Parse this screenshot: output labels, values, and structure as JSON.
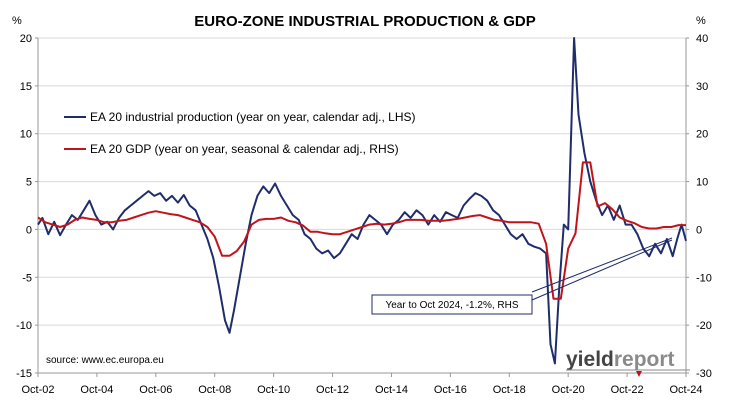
{
  "chart_data": {
    "type": "line",
    "title": "EURO-ZONE INDUSTRIAL PRODUCTION & GDP",
    "y_left_unit": "%",
    "y_right_unit": "%",
    "ylim_left": [
      -15,
      20
    ],
    "ylim_right": [
      -30,
      40
    ],
    "yticks_left": [
      "20",
      "15",
      "10",
      "5",
      "0",
      "-5",
      "-10",
      "-15"
    ],
    "yticks_right": [
      "40",
      "30",
      "20",
      "10",
      "0",
      "-10",
      "-20",
      "-30"
    ],
    "xlim": [
      2002.75,
      2024.75
    ],
    "xticks": [
      {
        "label": "Oct-02",
        "x": 2002.75
      },
      {
        "label": "Oct-04",
        "x": 2004.75
      },
      {
        "label": "Oct-06",
        "x": 2006.75
      },
      {
        "label": "Oct-08",
        "x": 2008.75
      },
      {
        "label": "Oct-10",
        "x": 2010.75
      },
      {
        "label": "Oct-12",
        "x": 2012.75
      },
      {
        "label": "Oct-14",
        "x": 2014.75
      },
      {
        "label": "Oct-16",
        "x": 2016.75
      },
      {
        "label": "Oct-18",
        "x": 2018.75
      },
      {
        "label": "Oct-20",
        "x": 2020.75
      },
      {
        "label": "Oct-22",
        "x": 2022.75
      },
      {
        "label": "Oct-24",
        "x": 2024.75
      }
    ],
    "grid": "horizontal",
    "legend_position": "top-left",
    "series": [
      {
        "name": "EA 20 industrial production (year on year, calendar adj., LHS)",
        "axis": "left",
        "color": "#1f2d6b",
        "points": [
          [
            2002.75,
            0.5
          ],
          [
            2002.9,
            1.2
          ],
          [
            2003.1,
            -0.5
          ],
          [
            2003.3,
            0.8
          ],
          [
            2003.5,
            -0.6
          ],
          [
            2003.7,
            0.5
          ],
          [
            2003.9,
            1.5
          ],
          [
            2004.1,
            1.0
          ],
          [
            2004.3,
            2.0
          ],
          [
            2004.5,
            3.0
          ],
          [
            2004.7,
            1.5
          ],
          [
            2004.9,
            0.5
          ],
          [
            2005.1,
            0.8
          ],
          [
            2005.3,
            0.0
          ],
          [
            2005.5,
            1.2
          ],
          [
            2005.7,
            2.0
          ],
          [
            2005.9,
            2.5
          ],
          [
            2006.1,
            3.0
          ],
          [
            2006.3,
            3.5
          ],
          [
            2006.5,
            4.0
          ],
          [
            2006.7,
            3.5
          ],
          [
            2006.9,
            3.8
          ],
          [
            2007.1,
            3.0
          ],
          [
            2007.3,
            3.5
          ],
          [
            2007.5,
            2.8
          ],
          [
            2007.7,
            3.6
          ],
          [
            2007.9,
            2.5
          ],
          [
            2008.1,
            2.0
          ],
          [
            2008.3,
            0.5
          ],
          [
            2008.5,
            -1.0
          ],
          [
            2008.7,
            -3.0
          ],
          [
            2008.9,
            -6.0
          ],
          [
            2009.1,
            -9.5
          ],
          [
            2009.25,
            -10.8
          ],
          [
            2009.4,
            -8.5
          ],
          [
            2009.6,
            -5.0
          ],
          [
            2009.8,
            -1.5
          ],
          [
            2010.0,
            1.5
          ],
          [
            2010.2,
            3.5
          ],
          [
            2010.4,
            4.5
          ],
          [
            2010.6,
            3.8
          ],
          [
            2010.8,
            4.8
          ],
          [
            2011.0,
            3.5
          ],
          [
            2011.2,
            2.5
          ],
          [
            2011.4,
            1.5
          ],
          [
            2011.6,
            1.0
          ],
          [
            2011.8,
            -0.5
          ],
          [
            2012.0,
            -1.0
          ],
          [
            2012.2,
            -2.0
          ],
          [
            2012.4,
            -2.5
          ],
          [
            2012.6,
            -2.2
          ],
          [
            2012.8,
            -3.0
          ],
          [
            2013.0,
            -2.5
          ],
          [
            2013.2,
            -1.5
          ],
          [
            2013.4,
            -0.5
          ],
          [
            2013.6,
            -1.0
          ],
          [
            2013.8,
            0.5
          ],
          [
            2014.0,
            1.5
          ],
          [
            2014.2,
            1.0
          ],
          [
            2014.4,
            0.5
          ],
          [
            2014.6,
            -0.5
          ],
          [
            2014.8,
            0.5
          ],
          [
            2015.0,
            1.0
          ],
          [
            2015.2,
            1.8
          ],
          [
            2015.4,
            1.2
          ],
          [
            2015.6,
            2.0
          ],
          [
            2015.8,
            1.5
          ],
          [
            2016.0,
            0.5
          ],
          [
            2016.2,
            1.5
          ],
          [
            2016.4,
            0.8
          ],
          [
            2016.6,
            1.8
          ],
          [
            2016.8,
            1.5
          ],
          [
            2017.0,
            1.2
          ],
          [
            2017.2,
            2.5
          ],
          [
            2017.4,
            3.2
          ],
          [
            2017.6,
            3.8
          ],
          [
            2017.8,
            3.5
          ],
          [
            2018.0,
            3.0
          ],
          [
            2018.2,
            2.0
          ],
          [
            2018.4,
            1.5
          ],
          [
            2018.6,
            0.5
          ],
          [
            2018.8,
            -0.5
          ],
          [
            2019.0,
            -1.0
          ],
          [
            2019.2,
            -0.5
          ],
          [
            2019.4,
            -1.5
          ],
          [
            2019.6,
            -1.8
          ],
          [
            2019.8,
            -2.0
          ],
          [
            2020.0,
            -2.5
          ],
          [
            2020.15,
            -12.0
          ],
          [
            2020.3,
            -14.0
          ],
          [
            2020.45,
            -6.0
          ],
          [
            2020.6,
            0.5
          ],
          [
            2020.75,
            0.0
          ],
          [
            2020.95,
            20.0
          ],
          [
            2021.1,
            12.0
          ],
          [
            2021.3,
            8.0
          ],
          [
            2021.5,
            5.0
          ],
          [
            2021.7,
            3.0
          ],
          [
            2021.9,
            1.5
          ],
          [
            2022.1,
            2.5
          ],
          [
            2022.3,
            1.0
          ],
          [
            2022.5,
            2.5
          ],
          [
            2022.7,
            0.5
          ],
          [
            2022.9,
            0.5
          ],
          [
            2023.1,
            -0.5
          ],
          [
            2023.3,
            -2.0
          ],
          [
            2023.5,
            -2.8
          ],
          [
            2023.7,
            -1.5
          ],
          [
            2023.9,
            -2.5
          ],
          [
            2024.1,
            -1.0
          ],
          [
            2024.3,
            -2.8
          ],
          [
            2024.45,
            -1.0
          ],
          [
            2024.6,
            0.5
          ],
          [
            2024.75,
            -1.2
          ]
        ]
      },
      {
        "name": "EA 20 GDP (year on year, seasonal & calendar adj., RHS)",
        "axis": "right",
        "color": "#c0141c",
        "points": [
          [
            2002.75,
            2.5
          ],
          [
            2003.0,
            1.5
          ],
          [
            2003.25,
            1.0
          ],
          [
            2003.5,
            0.5
          ],
          [
            2003.75,
            1.0
          ],
          [
            2004.0,
            2.0
          ],
          [
            2004.25,
            2.5
          ],
          [
            2004.5,
            2.2
          ],
          [
            2004.75,
            2.0
          ],
          [
            2005.0,
            1.5
          ],
          [
            2005.25,
            1.5
          ],
          [
            2005.5,
            1.8
          ],
          [
            2005.75,
            2.0
          ],
          [
            2006.0,
            2.5
          ],
          [
            2006.25,
            3.0
          ],
          [
            2006.5,
            3.5
          ],
          [
            2006.75,
            3.8
          ],
          [
            2007.0,
            3.5
          ],
          [
            2007.25,
            3.2
          ],
          [
            2007.5,
            3.0
          ],
          [
            2007.75,
            2.5
          ],
          [
            2008.0,
            2.0
          ],
          [
            2008.25,
            1.5
          ],
          [
            2008.5,
            0.5
          ],
          [
            2008.75,
            -1.5
          ],
          [
            2009.0,
            -5.5
          ],
          [
            2009.25,
            -5.5
          ],
          [
            2009.5,
            -4.5
          ],
          [
            2009.75,
            -2.5
          ],
          [
            2010.0,
            1.0
          ],
          [
            2010.25,
            2.0
          ],
          [
            2010.5,
            2.2
          ],
          [
            2010.75,
            2.2
          ],
          [
            2011.0,
            2.5
          ],
          [
            2011.25,
            1.8
          ],
          [
            2011.5,
            1.5
          ],
          [
            2011.75,
            0.8
          ],
          [
            2012.0,
            -0.5
          ],
          [
            2012.25,
            -0.5
          ],
          [
            2012.5,
            -0.8
          ],
          [
            2012.75,
            -1.0
          ],
          [
            2013.0,
            -1.0
          ],
          [
            2013.25,
            -0.5
          ],
          [
            2013.5,
            0.0
          ],
          [
            2013.75,
            0.5
          ],
          [
            2014.0,
            1.0
          ],
          [
            2014.25,
            1.2
          ],
          [
            2014.5,
            1.0
          ],
          [
            2014.75,
            1.2
          ],
          [
            2015.0,
            1.5
          ],
          [
            2015.25,
            2.0
          ],
          [
            2015.5,
            2.0
          ],
          [
            2015.75,
            2.0
          ],
          [
            2016.0,
            1.8
          ],
          [
            2016.25,
            1.8
          ],
          [
            2016.5,
            1.8
          ],
          [
            2016.75,
            2.0
          ],
          [
            2017.0,
            2.2
          ],
          [
            2017.25,
            2.5
          ],
          [
            2017.5,
            2.8
          ],
          [
            2017.75,
            3.0
          ],
          [
            2018.0,
            2.5
          ],
          [
            2018.25,
            2.0
          ],
          [
            2018.5,
            1.8
          ],
          [
            2018.75,
            1.5
          ],
          [
            2019.0,
            1.5
          ],
          [
            2019.25,
            1.5
          ],
          [
            2019.5,
            1.5
          ],
          [
            2019.75,
            1.2
          ],
          [
            2020.0,
            -3.0
          ],
          [
            2020.25,
            -14.5
          ],
          [
            2020.5,
            -14.5
          ],
          [
            2020.75,
            -4.0
          ],
          [
            2021.0,
            -0.8
          ],
          [
            2021.25,
            14.0
          ],
          [
            2021.5,
            14.0
          ],
          [
            2021.75,
            4.8
          ],
          [
            2022.0,
            5.5
          ],
          [
            2022.25,
            4.2
          ],
          [
            2022.5,
            2.5
          ],
          [
            2022.75,
            1.8
          ],
          [
            2023.0,
            1.3
          ],
          [
            2023.25,
            0.5
          ],
          [
            2023.5,
            0.2
          ],
          [
            2023.75,
            0.2
          ],
          [
            2024.0,
            0.5
          ],
          [
            2024.25,
            0.5
          ],
          [
            2024.5,
            0.9
          ],
          [
            2024.75,
            0.9
          ]
        ]
      }
    ]
  },
  "source": "source: www.ec.europa.eu",
  "annotation": "Year to Oct 2024, -1.2%, RHS",
  "logo": {
    "part1": "yield",
    "part2": "report"
  },
  "colors": {
    "ip": "#1f2d6b",
    "gdp": "#c0141c",
    "axis": "#999999",
    "grid": "#d9d9d9",
    "logo_dark": "#444444",
    "logo_light": "#8a8a8a"
  }
}
